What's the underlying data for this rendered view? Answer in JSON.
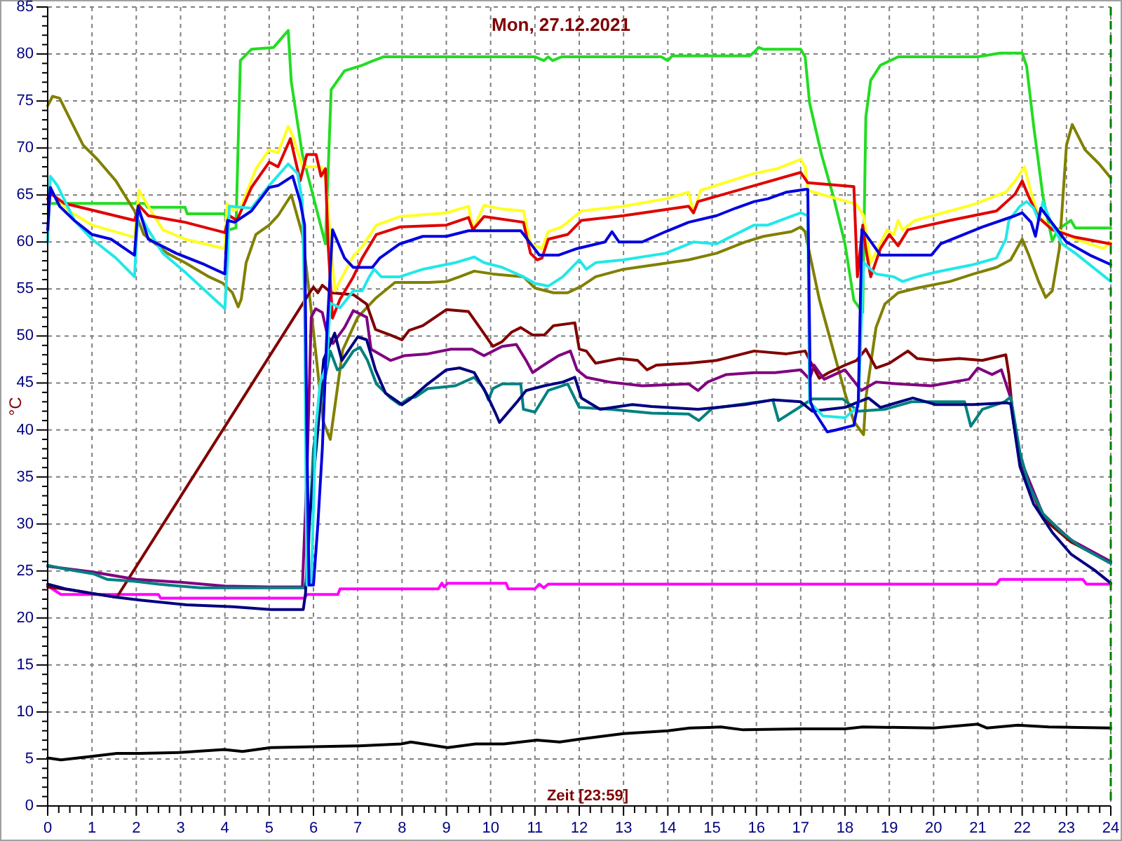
{
  "chart_data": {
    "type": "line",
    "title": "Mon, 27.12.2021",
    "xlabel": "Zeit [23:59]",
    "ylabel": "°C",
    "xlim": [
      0,
      24
    ],
    "xticks": [
      0,
      {
        "value": 0.25,
        "label": null
      },
      {
        "value": 0.5,
        "label": null
      },
      {
        "value": 0.75,
        "label": null
      },
      1,
      {
        "value": 1.25,
        "label": null
      },
      {
        "value": 1.5,
        "label": null
      },
      {
        "value": 1.75,
        "label": null
      },
      2,
      {
        "value": 2.25,
        "label": null
      },
      {
        "value": 2.5,
        "label": null
      },
      {
        "value": 2.75,
        "label": null
      },
      3,
      {
        "value": 3.25,
        "label": null
      },
      {
        "value": 3.5,
        "label": null
      },
      {
        "value": 3.75,
        "label": null
      },
      4,
      {
        "value": 4.25,
        "label": null
      },
      {
        "value": 4.5,
        "label": null
      },
      {
        "value": 4.75,
        "label": null
      },
      5,
      {
        "value": 5.25,
        "label": null
      },
      {
        "value": 5.5,
        "label": null
      },
      {
        "value": 5.75,
        "label": null
      },
      6,
      {
        "value": 6.25,
        "label": null
      },
      {
        "value": 6.5,
        "label": null
      },
      {
        "value": 6.75,
        "label": null
      },
      7,
      {
        "value": 7.25,
        "label": null
      },
      {
        "value": 7.5,
        "label": null
      },
      {
        "value": 7.75,
        "label": null
      },
      8,
      {
        "value": 8.25,
        "label": null
      },
      {
        "value": 8.5,
        "label": null
      },
      {
        "value": 8.75,
        "label": null
      },
      9,
      {
        "value": 9.25,
        "label": null
      },
      {
        "value": 9.5,
        "label": null
      },
      {
        "value": 9.75,
        "label": null
      },
      10,
      {
        "value": 10.25,
        "label": null
      },
      {
        "value": 10.5,
        "label": null
      },
      {
        "value": 10.75,
        "label": null
      },
      11,
      {
        "value": 11.25,
        "label": null
      },
      {
        "value": 11.5,
        "label": null
      },
      {
        "value": 11.75,
        "label": null
      },
      12,
      {
        "value": 12.25,
        "label": null
      },
      {
        "value": 12.5,
        "label": null
      },
      {
        "value": 12.75,
        "label": null
      },
      13,
      {
        "value": 13.25,
        "label": null
      },
      {
        "value": 13.5,
        "label": null
      },
      {
        "value": 13.75,
        "label": null
      },
      14,
      {
        "value": 14.25,
        "label": null
      },
      {
        "value": 14.5,
        "label": null
      },
      {
        "value": 14.75,
        "label": null
      },
      15,
      {
        "value": 15.25,
        "label": null
      },
      {
        "value": 15.5,
        "label": null
      },
      {
        "value": 15.75,
        "label": null
      },
      16,
      {
        "value": 16.25,
        "label": null
      },
      {
        "value": 16.5,
        "label": null
      },
      {
        "value": 16.75,
        "label": null
      },
      17,
      {
        "value": 17.25,
        "label": null
      },
      {
        "value": 17.5,
        "label": null
      },
      {
        "value": 17.75,
        "label": null
      },
      18,
      {
        "value": 18.25,
        "label": null
      },
      {
        "value": 18.5,
        "label": null
      },
      {
        "value": 18.75,
        "label": null
      },
      19,
      {
        "value": 19.25,
        "label": null
      },
      {
        "value": 19.5,
        "label": null
      },
      {
        "value": 19.75,
        "label": null
      },
      20,
      {
        "value": 20.25,
        "label": null
      },
      {
        "value": 20.5,
        "label": null
      },
      {
        "value": 20.75,
        "label": null
      },
      21,
      {
        "value": 21.25,
        "label": null
      },
      {
        "value": 21.5,
        "label": null
      },
      {
        "value": 21.75,
        "label": null
      },
      22,
      {
        "value": 22.25,
        "label": null
      },
      {
        "value": 22.5,
        "label": null
      },
      {
        "value": 22.75,
        "label": null
      },
      23,
      {
        "value": 23.25,
        "label": null
      },
      {
        "value": 23.5,
        "label": null
      },
      {
        "value": 23.75,
        "label": null
      },
      24
    ],
    "ylim": [
      0,
      85
    ],
    "yticks": [
      0,
      {
        "value": 1,
        "label": null
      },
      {
        "value": 2,
        "label": null
      },
      {
        "value": 3,
        "label": null
      },
      {
        "value": 4,
        "label": null
      },
      5,
      {
        "value": 6,
        "label": null
      },
      {
        "value": 7,
        "label": null
      },
      {
        "value": 8,
        "label": null
      },
      {
        "value": 9,
        "label": null
      },
      10,
      {
        "value": 11,
        "label": null
      },
      {
        "value": 12,
        "label": null
      },
      {
        "value": 13,
        "label": null
      },
      {
        "value": 14,
        "label": null
      },
      15,
      {
        "value": 16,
        "label": null
      },
      {
        "value": 17,
        "label": null
      },
      {
        "value": 18,
        "label": null
      },
      {
        "value": 19,
        "label": null
      },
      20,
      {
        "value": 21,
        "label": null
      },
      {
        "value": 22,
        "label": null
      },
      {
        "value": 23,
        "label": null
      },
      {
        "value": 24,
        "label": null
      },
      25,
      {
        "value": 26,
        "label": null
      },
      {
        "value": 27,
        "label": null
      },
      {
        "value": 28,
        "label": null
      },
      {
        "value": 29,
        "label": null
      },
      30,
      {
        "value": 31,
        "label": null
      },
      {
        "value": 32,
        "label": null
      },
      {
        "value": 33,
        "label": null
      },
      {
        "value": 34,
        "label": null
      },
      35,
      {
        "value": 36,
        "label": null
      },
      {
        "value": 37,
        "label": null
      },
      {
        "value": 38,
        "label": null
      },
      {
        "value": 39,
        "label": null
      },
      40,
      {
        "value": 41,
        "label": null
      },
      {
        "value": 42,
        "label": null
      },
      {
        "value": 43,
        "label": null
      },
      {
        "value": 44,
        "label": null
      },
      45,
      {
        "value": 46,
        "label": null
      },
      {
        "value": 47,
        "label": null
      },
      {
        "value": 48,
        "label": null
      },
      {
        "value": 49,
        "label": null
      },
      50,
      {
        "value": 51,
        "label": null
      },
      {
        "value": 52,
        "label": null
      },
      {
        "value": 53,
        "label": null
      },
      {
        "value": 54,
        "label": null
      },
      55,
      {
        "value": 56,
        "label": null
      },
      {
        "value": 57,
        "label": null
      },
      {
        "value": 58,
        "label": null
      },
      {
        "value": 59,
        "label": null
      },
      60,
      {
        "value": 61,
        "label": null
      },
      {
        "value": 62,
        "label": null
      },
      {
        "value": 63,
        "label": null
      },
      {
        "value": 64,
        "label": null
      },
      65,
      {
        "value": 66,
        "label": null
      },
      {
        "value": 67,
        "label": null
      },
      {
        "value": 68,
        "label": null
      },
      {
        "value": 69,
        "label": null
      },
      70,
      {
        "value": 71,
        "label": null
      },
      {
        "value": 72,
        "label": null
      },
      {
        "value": 73,
        "label": null
      },
      {
        "value": 74,
        "label": null
      },
      75,
      {
        "value": 76,
        "label": null
      },
      {
        "value": 77,
        "label": null
      },
      {
        "value": 78,
        "label": null
      },
      {
        "value": 79,
        "label": null
      },
      80,
      {
        "value": 81,
        "label": null
      },
      {
        "value": 82,
        "label": null
      },
      {
        "value": 83,
        "label": null
      },
      {
        "value": 84,
        "label": null
      },
      85
    ],
    "grid": true,
    "series": [
      {
        "color": "#000000",
        "x": [
          0.0,
          0.3,
          1.03,
          1.56,
          2.08,
          3.03,
          3.98,
          4.4,
          5.03,
          5.98,
          7.03,
          7.98,
          8.2,
          9.03,
          9.66,
          10.3,
          11.03,
          11.56,
          12.0,
          13.0,
          14.0,
          14.5,
          15.2,
          15.7,
          17.0,
          18.0,
          18.4,
          20.0,
          21.0,
          21.2,
          21.9,
          22.6,
          24.0
        ],
        "values": [
          5.1,
          4.9,
          5.3,
          5.6,
          5.6,
          5.7,
          6.0,
          5.8,
          6.2,
          6.3,
          6.4,
          6.6,
          6.8,
          6.2,
          6.6,
          6.6,
          7.0,
          6.8,
          7.1,
          7.7,
          8.0,
          8.3,
          8.4,
          8.1,
          8.2,
          8.2,
          8.4,
          8.3,
          8.7,
          8.3,
          8.6,
          8.4,
          8.3
        ]
      },
      {
        "color": "#ff00ff",
        "x": [
          0.0,
          0.3,
          2.5,
          2.55,
          5.8,
          5.85,
          6.55,
          6.6,
          8.82,
          8.9,
          8.95,
          9.03,
          10.35,
          10.4,
          11.0,
          11.1,
          11.2,
          11.3,
          21.42,
          21.5,
          23.37,
          23.45,
          24.0
        ],
        "values": [
          23.4,
          22.5,
          22.5,
          22.1,
          22.1,
          22.5,
          22.5,
          23.1,
          23.1,
          23.7,
          23.3,
          23.7,
          23.7,
          23.1,
          23.1,
          23.6,
          23.2,
          23.6,
          23.6,
          24.1,
          24.1,
          23.6,
          23.6
        ]
      },
      {
        "color": "#22dd22",
        "x": [
          0.05,
          2.2,
          2.25,
          3.1,
          3.15,
          4.0,
          4.1,
          4.25,
          4.35,
          4.6,
          5.1,
          5.43,
          5.5,
          5.75,
          5.96,
          6.27,
          6.4,
          6.7,
          7.1,
          7.3,
          7.58,
          11.0,
          11.2,
          11.3,
          11.4,
          11.6,
          13.85,
          14.0,
          14.1,
          15.85,
          15.95,
          16.05,
          16.16,
          17.0,
          17.1,
          17.2,
          17.47,
          17.74,
          18.0,
          18.2,
          18.4,
          18.47,
          18.58,
          18.8,
          19.2,
          21.0,
          21.5,
          22.0,
          22.1,
          22.26,
          22.47,
          22.68,
          22.8,
          23.1,
          23.2,
          24.0
        ],
        "values": [
          64.1,
          64.1,
          63.7,
          63.7,
          63.0,
          63.0,
          61.3,
          61.5,
          79.3,
          80.5,
          80.7,
          82.5,
          77.0,
          69.3,
          65.5,
          59.8,
          76.2,
          78.2,
          78.8,
          79.2,
          79.7,
          79.7,
          79.3,
          79.7,
          79.3,
          79.7,
          79.7,
          79.3,
          79.8,
          79.8,
          80.2,
          80.7,
          80.5,
          80.5,
          79.7,
          74.8,
          69.3,
          64.8,
          59.8,
          53.8,
          52.5,
          73.3,
          77.2,
          78.8,
          79.7,
          79.7,
          80.1,
          80.1,
          78.7,
          72.3,
          64.8,
          60.1,
          61.3,
          62.3,
          61.5,
          61.5
        ]
      },
      {
        "color": "#808000",
        "x": [
          0.0,
          0.11,
          0.27,
          0.48,
          0.8,
          1.12,
          1.54,
          1.96,
          2.17,
          2.7,
          3.1,
          3.64,
          3.96,
          4.17,
          4.3,
          4.37,
          4.48,
          4.7,
          5.0,
          5.2,
          5.5,
          5.75,
          5.9,
          6.06,
          6.22,
          6.38,
          6.66,
          7.0,
          7.4,
          7.84,
          8.6,
          9.0,
          9.3,
          9.63,
          10.05,
          10.74,
          11.0,
          11.42,
          11.74,
          12.05,
          12.37,
          13.0,
          13.74,
          14.47,
          15.1,
          15.74,
          16.16,
          16.79,
          17.0,
          17.1,
          17.2,
          17.42,
          17.74,
          18.0,
          18.2,
          18.42,
          18.47,
          18.7,
          18.9,
          19.2,
          19.63,
          20.37,
          20.9,
          21.42,
          21.74,
          22.0,
          22.15,
          22.37,
          22.53,
          22.68,
          22.84,
          23.0,
          23.13,
          23.42,
          23.74,
          24.0
        ],
        "values": [
          74.5,
          75.5,
          75.3,
          73.3,
          70.3,
          68.8,
          66.5,
          63.3,
          60.8,
          58.8,
          57.8,
          56.3,
          55.6,
          54.6,
          53.1,
          53.9,
          57.8,
          60.8,
          61.8,
          62.8,
          65.0,
          60.8,
          54.8,
          47.9,
          40.9,
          39.0,
          48.5,
          52.0,
          54.0,
          55.7,
          55.7,
          55.8,
          56.3,
          56.9,
          56.6,
          56.3,
          55.1,
          54.6,
          54.6,
          55.3,
          56.3,
          57.1,
          57.6,
          58.1,
          58.8,
          60.0,
          60.6,
          61.1,
          61.6,
          61.1,
          58.8,
          53.9,
          48.4,
          43.9,
          40.9,
          39.5,
          43.4,
          50.9,
          53.4,
          54.6,
          55.1,
          55.8,
          56.6,
          57.3,
          58.1,
          60.3,
          58.6,
          55.8,
          54.1,
          54.8,
          59.3,
          70.3,
          72.5,
          69.8,
          68.3,
          66.8
        ]
      },
      {
        "color": "#800000",
        "x": [
          0.0,
          0.5,
          1.0,
          1.56,
          4.49,
          5.9,
          6.0,
          6.1,
          6.2,
          6.4,
          6.9,
          7.2,
          7.4,
          7.74,
          8.0,
          8.16,
          8.47,
          9.0,
          9.5,
          9.68,
          10.05,
          10.26,
          10.47,
          10.68,
          10.95,
          11.21,
          11.42,
          11.9,
          12.0,
          12.16,
          12.37,
          12.9,
          13.32,
          13.53,
          13.74,
          14.47,
          15.1,
          15.95,
          16.68,
          17.1,
          17.26,
          17.42,
          17.63,
          18.0,
          18.26,
          18.47,
          18.7,
          19.0,
          19.42,
          19.63,
          20.05,
          20.58,
          21.1,
          21.63,
          21.7,
          21.8,
          21.95,
          22.47,
          23.1,
          24.0
        ],
        "values": [
          23.3,
          23.0,
          22.6,
          22.2,
          44.0,
          54.5,
          55.2,
          54.6,
          55.4,
          54.6,
          54.4,
          53.4,
          50.7,
          50.1,
          49.6,
          50.6,
          51.1,
          52.8,
          52.6,
          51.4,
          48.9,
          49.4,
          50.4,
          50.9,
          50.1,
          50.1,
          51.1,
          51.4,
          48.6,
          48.4,
          47.1,
          47.6,
          47.4,
          46.4,
          46.9,
          47.1,
          47.4,
          48.4,
          48.1,
          48.4,
          46.9,
          45.5,
          46.1,
          46.9,
          47.4,
          48.6,
          46.6,
          47.1,
          48.4,
          47.6,
          47.4,
          47.6,
          47.4,
          48.0,
          45.9,
          41.0,
          36.6,
          30.6,
          28.1,
          25.9
        ]
      },
      {
        "color": "#800080",
        "x": [
          0.0,
          1.0,
          2.0,
          3.0,
          4.0,
          5.0,
          5.75,
          5.85,
          5.95,
          6.05,
          6.2,
          6.32,
          6.44,
          6.7,
          6.9,
          7.2,
          7.3,
          7.74,
          8.05,
          8.58,
          9.1,
          9.58,
          9.85,
          10.26,
          10.58,
          10.8,
          10.95,
          11.1,
          11.53,
          11.8,
          11.95,
          12.16,
          12.68,
          13.42,
          14.47,
          14.68,
          14.9,
          15.32,
          15.95,
          16.42,
          17.0,
          17.2,
          17.3,
          17.53,
          18.0,
          18.37,
          18.7,
          19.2,
          19.95,
          20.8,
          21.0,
          21.32,
          21.53,
          21.74,
          21.95,
          22.47,
          23.1,
          24.0
        ],
        "values": [
          25.5,
          24.9,
          24.1,
          23.8,
          23.4,
          23.3,
          23.3,
          35.0,
          52.0,
          52.9,
          52.5,
          50.0,
          49.2,
          50.9,
          52.7,
          52.0,
          48.6,
          47.4,
          47.9,
          48.1,
          48.6,
          48.6,
          47.9,
          48.9,
          49.1,
          47.4,
          46.1,
          46.6,
          47.9,
          48.4,
          46.4,
          45.6,
          45.1,
          44.7,
          44.9,
          44.2,
          45.1,
          45.9,
          46.1,
          46.1,
          46.4,
          45.4,
          46.9,
          45.4,
          46.4,
          44.2,
          45.1,
          44.9,
          44.7,
          45.4,
          46.6,
          45.9,
          46.4,
          43.4,
          37.0,
          31.0,
          28.3,
          26.0
        ]
      },
      {
        "color": "#008080",
        "x": [
          0.0,
          0.4,
          1.03,
          1.35,
          1.98,
          2.5,
          3.45,
          4.72,
          5.8,
          5.85,
          6.0,
          6.2,
          6.38,
          6.54,
          6.66,
          6.9,
          7.05,
          7.22,
          7.42,
          7.74,
          7.95,
          8.16,
          8.3,
          8.58,
          9.2,
          9.63,
          9.85,
          9.95,
          10.05,
          10.26,
          10.68,
          10.74,
          11.0,
          11.3,
          11.74,
          12.0,
          12.7,
          13.63,
          14.47,
          14.7,
          15.0,
          16.37,
          16.5,
          17.0,
          17.26,
          17.95,
          18.3,
          18.9,
          19.5,
          20.7,
          20.84,
          21.0,
          21.1,
          21.6,
          21.74,
          21.95,
          22.16,
          22.47,
          22.9,
          23.3,
          24.0
        ],
        "values": [
          25.6,
          25.2,
          24.7,
          24.1,
          23.9,
          23.6,
          23.2,
          23.2,
          23.2,
          24.0,
          38.0,
          44.0,
          48.4,
          46.4,
          46.7,
          48.4,
          48.8,
          47.4,
          44.9,
          43.4,
          42.7,
          43.4,
          43.5,
          44.4,
          44.7,
          45.6,
          44.4,
          43.2,
          44.4,
          44.9,
          44.9,
          42.2,
          41.9,
          44.2,
          44.9,
          42.4,
          42.2,
          41.8,
          41.7,
          41.0,
          42.3,
          43.2,
          41.0,
          42.5,
          43.3,
          43.3,
          42.0,
          42.2,
          43.0,
          43.0,
          40.4,
          41.5,
          42.2,
          43.0,
          43.5,
          37.6,
          34.0,
          31.1,
          29.1,
          27.6,
          25.8
        ]
      },
      {
        "color": "#000080",
        "x": [
          0.0,
          0.4,
          1.03,
          1.56,
          2.08,
          3.13,
          4.18,
          5.03,
          5.77,
          5.82,
          5.9,
          6.1,
          6.23,
          6.48,
          6.64,
          7.0,
          7.2,
          7.4,
          7.63,
          8.0,
          8.16,
          8.58,
          9.0,
          9.3,
          9.63,
          9.9,
          10.1,
          10.2,
          10.58,
          10.8,
          11.21,
          11.63,
          11.9,
          12.05,
          12.47,
          13.2,
          13.63,
          14.68,
          15.74,
          16.37,
          17.0,
          17.26,
          18.0,
          18.26,
          18.53,
          18.8,
          19.53,
          20.05,
          20.9,
          21.63,
          21.74,
          21.95,
          22.26,
          22.68,
          23.1,
          23.63,
          24.0
        ],
        "values": [
          23.6,
          23.1,
          22.6,
          22.2,
          21.9,
          21.4,
          21.2,
          20.9,
          20.9,
          22.6,
          30.0,
          40.0,
          47.5,
          50.3,
          47.4,
          49.9,
          49.6,
          46.4,
          43.9,
          42.7,
          43.2,
          44.9,
          46.4,
          46.6,
          46.1,
          43.9,
          41.9,
          40.8,
          42.9,
          44.2,
          44.7,
          45.1,
          45.6,
          43.4,
          42.2,
          42.7,
          42.5,
          42.2,
          42.7,
          43.2,
          43.0,
          42.0,
          42.4,
          42.9,
          43.4,
          42.4,
          43.4,
          42.7,
          42.7,
          42.9,
          42.8,
          36.1,
          32.1,
          29.1,
          26.8,
          25.1,
          23.7
        ]
      },
      {
        "color": "#ffff22",
        "x": [
          0.0,
          0.08,
          0.48,
          1.0,
          1.96,
          2.06,
          2.27,
          2.6,
          3.1,
          4.0,
          4.05,
          4.2,
          4.37,
          4.7,
          5.0,
          5.2,
          5.43,
          5.53,
          5.75,
          6.17,
          6.27,
          6.48,
          6.9,
          7.1,
          7.42,
          7.95,
          9.0,
          9.5,
          9.6,
          9.85,
          10.26,
          10.74,
          10.9,
          11.16,
          11.3,
          11.6,
          12.05,
          13.0,
          13.95,
          14.47,
          14.58,
          14.74,
          15.95,
          16.47,
          17.0,
          17.1,
          17.16,
          17.3,
          18.05,
          18.26,
          18.42,
          18.58,
          18.74,
          18.95,
          19.1,
          19.2,
          19.3,
          19.58,
          20.37,
          20.9,
          21.63,
          21.84,
          22.05,
          22.2,
          22.37,
          22.58,
          22.9,
          23.2,
          23.84,
          24.0
        ],
        "values": [
          63.0,
          65.3,
          63.3,
          61.8,
          60.5,
          65.5,
          63.8,
          61.3,
          60.3,
          59.3,
          64.1,
          63.3,
          63.8,
          67.8,
          69.8,
          69.5,
          72.3,
          71.3,
          68.0,
          68.0,
          66.8,
          54.8,
          58.5,
          59.5,
          61.8,
          62.7,
          63.1,
          63.8,
          61.3,
          63.9,
          63.5,
          63.3,
          59.8,
          59.3,
          61.1,
          61.6,
          63.3,
          63.8,
          64.6,
          65.3,
          63.1,
          65.5,
          67.3,
          67.8,
          68.8,
          68.0,
          65.5,
          65.3,
          64.3,
          64.0,
          62.8,
          57.8,
          59.3,
          61.3,
          60.8,
          62.3,
          61.3,
          62.3,
          63.3,
          64.0,
          65.3,
          66.5,
          68.0,
          65.3,
          62.8,
          61.8,
          61.1,
          60.3,
          59.3,
          60.0
        ]
      },
      {
        "color": "#e00000",
        "x": [
          0.0,
          0.08,
          0.38,
          1.0,
          1.96,
          2.06,
          2.27,
          3.1,
          4.0,
          4.1,
          4.27,
          4.6,
          5.0,
          5.2,
          5.48,
          5.7,
          5.85,
          6.06,
          6.17,
          6.27,
          6.33,
          6.43,
          6.6,
          6.9,
          7.1,
          7.42,
          7.95,
          9.0,
          9.5,
          9.6,
          9.85,
          10.74,
          10.9,
          11.05,
          11.16,
          11.3,
          11.74,
          12.05,
          13.0,
          14.47,
          14.58,
          14.68,
          15.95,
          17.0,
          17.16,
          18.2,
          18.28,
          18.4,
          18.47,
          18.58,
          18.8,
          19.0,
          19.2,
          19.42,
          20.37,
          21.42,
          21.84,
          22.0,
          22.15,
          22.37,
          22.68,
          23.2,
          24.0
        ],
        "values": [
          64.6,
          65.1,
          64.1,
          63.4,
          62.3,
          63.9,
          62.8,
          62.1,
          61.0,
          62.8,
          62.3,
          65.8,
          68.5,
          68.0,
          71.0,
          66.5,
          69.3,
          69.3,
          67.0,
          67.8,
          59.8,
          51.9,
          53.9,
          56.3,
          58.3,
          60.8,
          61.6,
          61.8,
          62.6,
          61.3,
          62.7,
          62.1,
          58.8,
          58.1,
          58.3,
          60.3,
          60.8,
          62.3,
          62.8,
          63.8,
          63.1,
          64.3,
          66.0,
          67.4,
          66.3,
          65.9,
          56.3,
          61.8,
          59.3,
          56.3,
          59.3,
          60.8,
          59.6,
          61.3,
          62.3,
          63.3,
          65.1,
          66.5,
          64.8,
          62.6,
          61.3,
          60.5,
          59.8
        ]
      },
      {
        "color": "#22e8e8",
        "x": [
          0.0,
          0.06,
          0.22,
          0.6,
          1.0,
          1.54,
          1.96,
          2.04,
          2.27,
          2.6,
          3.1,
          4.0,
          4.06,
          4.1,
          4.6,
          5.0,
          5.43,
          5.64,
          5.75,
          5.8,
          5.85,
          5.95,
          6.05,
          6.15,
          6.3,
          6.38,
          6.6,
          6.9,
          7.1,
          7.26,
          7.37,
          7.53,
          7.95,
          8.47,
          9.2,
          9.63,
          9.85,
          10.26,
          10.74,
          11.0,
          11.3,
          11.63,
          12.0,
          12.16,
          12.37,
          13.0,
          13.95,
          14.58,
          15.1,
          15.95,
          16.26,
          17.0,
          17.16,
          17.2,
          17.3,
          17.5,
          18.0,
          18.3,
          18.42,
          18.7,
          19.1,
          19.3,
          19.63,
          20.05,
          20.9,
          21.42,
          21.63,
          21.7,
          21.95,
          22.1,
          22.26,
          22.37,
          22.47,
          22.63,
          22.9,
          23.2,
          24.0
        ],
        "values": [
          60.0,
          67.0,
          66.0,
          62.3,
          60.3,
          58.3,
          56.3,
          63.3,
          61.3,
          58.8,
          56.8,
          52.9,
          57.9,
          63.8,
          63.6,
          66.0,
          68.3,
          67.3,
          64.3,
          52.9,
          23.5,
          23.5,
          40.0,
          45.0,
          47.0,
          53.5,
          53.0,
          54.8,
          54.8,
          56.3,
          57.1,
          56.3,
          56.3,
          57.1,
          57.8,
          58.4,
          57.8,
          57.3,
          56.3,
          55.6,
          55.3,
          56.3,
          58.1,
          57.1,
          57.8,
          58.1,
          58.8,
          60.0,
          59.8,
          61.8,
          61.8,
          63.1,
          62.8,
          42.9,
          42.5,
          41.5,
          41.3,
          42.5,
          57.8,
          56.6,
          56.3,
          55.8,
          56.3,
          56.8,
          57.6,
          58.3,
          60.3,
          62.3,
          63.8,
          64.3,
          63.6,
          62.3,
          64.3,
          62.3,
          59.8,
          58.8,
          55.8
        ]
      },
      {
        "color": "#0000e0",
        "x": [
          0.0,
          0.06,
          0.27,
          0.6,
          1.0,
          1.43,
          1.96,
          2.04,
          2.27,
          2.9,
          3.54,
          4.0,
          4.06,
          4.22,
          4.6,
          5.0,
          5.2,
          5.53,
          5.7,
          5.8,
          5.85,
          5.9,
          6.0,
          6.1,
          6.2,
          6.3,
          6.43,
          6.7,
          6.9,
          7.33,
          7.5,
          7.95,
          8.47,
          9.0,
          9.5,
          10.68,
          11.1,
          11.53,
          11.95,
          12.58,
          12.74,
          12.9,
          13.42,
          13.95,
          14.47,
          15.1,
          15.53,
          15.95,
          16.26,
          16.68,
          17.1,
          17.16,
          17.22,
          17.3,
          17.6,
          17.8,
          18.2,
          18.3,
          18.38,
          18.47,
          18.8,
          19.95,
          20.16,
          20.68,
          21.1,
          21.84,
          22.0,
          22.2,
          22.3,
          22.42,
          22.63,
          23.0,
          23.53,
          24.0
        ],
        "values": [
          61.3,
          65.8,
          63.8,
          62.3,
          60.8,
          60.3,
          58.6,
          63.8,
          60.3,
          58.8,
          57.6,
          56.6,
          62.3,
          62.1,
          63.3,
          65.8,
          66.0,
          67.0,
          64.3,
          61.8,
          40.0,
          23.5,
          23.5,
          30.0,
          38.0,
          50.0,
          61.3,
          58.3,
          57.3,
          57.3,
          58.3,
          59.8,
          60.6,
          60.6,
          61.2,
          61.2,
          58.6,
          58.6,
          59.3,
          60.0,
          61.1,
          60.0,
          60.0,
          61.1,
          62.1,
          62.8,
          63.6,
          64.3,
          64.6,
          65.3,
          65.6,
          65.6,
          43.0,
          42.0,
          39.8,
          40.0,
          40.5,
          43.0,
          61.3,
          60.8,
          58.6,
          58.6,
          59.8,
          60.8,
          61.6,
          62.8,
          63.1,
          62.1,
          60.6,
          63.6,
          62.3,
          60.0,
          58.6,
          57.6
        ]
      }
    ],
    "ref_lines": [
      {
        "axis": "x",
        "value": 24,
        "color": "#008000",
        "line_style": "dashed"
      }
    ]
  }
}
